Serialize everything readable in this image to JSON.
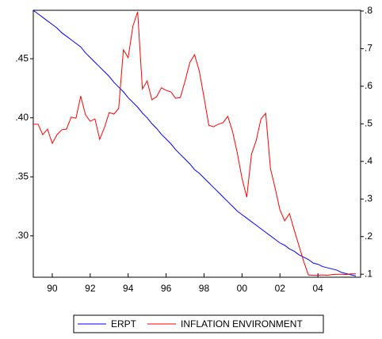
{
  "chart_data": {
    "type": "line",
    "x": [
      1989,
      1989.25,
      1989.5,
      1989.75,
      1990,
      1990.25,
      1990.5,
      1990.75,
      1991,
      1991.25,
      1991.5,
      1991.75,
      1992,
      1992.25,
      1992.5,
      1992.75,
      1993,
      1993.25,
      1993.5,
      1993.75,
      1994,
      1994.25,
      1994.5,
      1994.75,
      1995,
      1995.25,
      1995.5,
      1995.75,
      1996,
      1996.25,
      1996.5,
      1996.75,
      1997,
      1997.25,
      1997.5,
      1997.75,
      1998,
      1998.25,
      1998.5,
      1998.75,
      1999,
      1999.25,
      1999.5,
      1999.75,
      2000,
      2000.25,
      2000.5,
      2000.75,
      2001,
      2001.25,
      2001.5,
      2001.75,
      2002,
      2002.25,
      2002.5,
      2002.75,
      2003,
      2003.25,
      2003.5,
      2003.75,
      2004,
      2004.25,
      2004.5,
      2004.75,
      2005,
      2005.25,
      2005.5,
      2005.75,
      2006
    ],
    "series": [
      {
        "name": "ERPT",
        "color": "#0000ff",
        "axis": "y",
        "values": [
          0.491,
          0.488,
          0.485,
          0.482,
          0.479,
          0.476,
          0.472,
          0.469,
          0.466,
          0.463,
          0.46,
          0.455,
          0.451,
          0.447,
          0.443,
          0.439,
          0.435,
          0.43,
          0.426,
          0.422,
          0.417,
          0.413,
          0.409,
          0.404,
          0.4,
          0.395,
          0.391,
          0.386,
          0.382,
          0.378,
          0.373,
          0.369,
          0.365,
          0.361,
          0.356,
          0.353,
          0.349,
          0.345,
          0.341,
          0.337,
          0.333,
          0.329,
          0.325,
          0.321,
          0.318,
          0.315,
          0.312,
          0.309,
          0.306,
          0.303,
          0.3,
          0.297,
          0.294,
          0.292,
          0.289,
          0.287,
          0.284,
          0.282,
          0.28,
          0.277,
          0.276,
          0.274,
          0.273,
          0.272,
          0.271,
          0.269,
          0.268,
          0.267,
          0.266
        ]
      },
      {
        "name": "INFLATION ENVIRONMENT",
        "color": "#ff0000",
        "axis": "y2",
        "values": [
          0.499,
          0.499,
          0.471,
          0.486,
          0.448,
          0.471,
          0.484,
          0.486,
          0.518,
          0.515,
          0.574,
          0.524,
          0.507,
          0.513,
          0.459,
          0.49,
          0.53,
          0.526,
          0.541,
          0.697,
          0.676,
          0.76,
          0.798,
          0.593,
          0.614,
          0.564,
          0.572,
          0.596,
          0.589,
          0.585,
          0.568,
          0.57,
          0.614,
          0.663,
          0.684,
          0.64,
          0.57,
          0.496,
          0.492,
          0.499,
          0.503,
          0.52,
          0.48,
          0.423,
          0.355,
          0.305,
          0.419,
          0.456,
          0.513,
          0.528,
          0.381,
          0.328,
          0.271,
          0.242,
          0.261,
          0.218,
          0.176,
          0.134,
          0.098,
          0.097,
          0.097,
          0.098,
          0.097,
          0.099,
          0.1,
          0.1,
          0.099,
          0.101,
          0.101
        ]
      }
    ],
    "xlim": [
      1989,
      2006.25
    ],
    "xticks": [
      {
        "value": 1990,
        "label": "90"
      },
      {
        "value": 1992,
        "label": "92"
      },
      {
        "value": 1994,
        "label": "94"
      },
      {
        "value": 1996,
        "label": "96"
      },
      {
        "value": 1998,
        "label": "98"
      },
      {
        "value": 2000,
        "label": "00"
      },
      {
        "value": 2002,
        "label": "02"
      },
      {
        "value": 2004,
        "label": "04"
      }
    ],
    "ylim": [
      0.265,
      0.491
    ],
    "yticks": [
      {
        "value": 0.3,
        "label": ".30"
      },
      {
        "value": 0.35,
        "label": ".35"
      },
      {
        "value": 0.4,
        "label": ".40"
      },
      {
        "value": 0.45,
        "label": ".45"
      }
    ],
    "y2lim": [
      0.092,
      0.802
    ],
    "y2ticks": [
      {
        "value": 0.1,
        "label": ".1"
      },
      {
        "value": 0.2,
        "label": ".2"
      },
      {
        "value": 0.3,
        "label": ".3"
      },
      {
        "value": 0.4,
        "label": ".4"
      },
      {
        "value": 0.5,
        "label": ".5"
      },
      {
        "value": 0.6,
        "label": ".6"
      },
      {
        "value": 0.7,
        "label": ".7"
      },
      {
        "value": 0.8,
        "label": ".8"
      }
    ],
    "legend": "bottom"
  }
}
